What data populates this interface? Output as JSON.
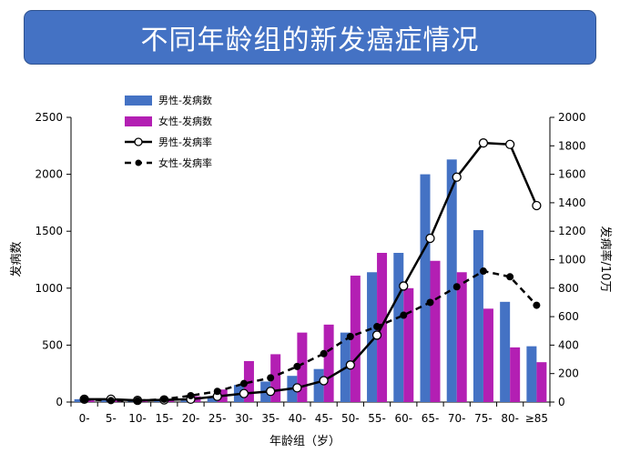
{
  "title": "不同年龄组的新发癌症情况",
  "colors": {
    "banner": "#4472c4",
    "male_bar": "#4472c4",
    "female_bar": "#b31fb3",
    "line": "#000000"
  },
  "chart_data": {
    "type": "bar",
    "title": "不同年龄组的新发癌症情况",
    "categories": [
      "0-",
      "5-",
      "10-",
      "15-",
      "20-",
      "25-",
      "30-",
      "35-",
      "40-",
      "45-",
      "50-",
      "55-",
      "60-",
      "65-",
      "70-",
      "75-",
      "80-",
      "≥85"
    ],
    "xlabel": "年龄组（岁）",
    "ylabel": "发病数",
    "y2label": "发病率/10万",
    "ylim": [
      0,
      2500
    ],
    "y2lim": [
      0,
      2000
    ],
    "yticks": [
      0,
      500,
      1000,
      1500,
      2000,
      2500
    ],
    "y2ticks": [
      0,
      200,
      400,
      600,
      800,
      1000,
      1200,
      1400,
      1600,
      1800,
      2000
    ],
    "legend_position": "top-left",
    "series": [
      {
        "name": "男性-发病数",
        "type": "bar",
        "axis": "left",
        "values": [
          25,
          20,
          15,
          10,
          15,
          35,
          150,
          180,
          230,
          290,
          610,
          1140,
          1310,
          2000,
          2130,
          1510,
          880,
          490
        ]
      },
      {
        "name": "女性-发病数",
        "type": "bar",
        "axis": "left",
        "values": [
          20,
          15,
          10,
          20,
          50,
          110,
          360,
          420,
          610,
          680,
          1110,
          1310,
          1000,
          1240,
          1140,
          820,
          480,
          350
        ]
      },
      {
        "name": "男性-发病率",
        "type": "line",
        "axis": "right",
        "style": "solid",
        "values": [
          20,
          20,
          12,
          15,
          20,
          40,
          60,
          75,
          100,
          150,
          260,
          470,
          815,
          1150,
          1580,
          1820,
          1810,
          1380
        ]
      },
      {
        "name": "女性-发病率",
        "type": "line",
        "axis": "right",
        "style": "dashed",
        "values": [
          20,
          10,
          10,
          20,
          45,
          75,
          130,
          170,
          250,
          340,
          460,
          530,
          610,
          700,
          810,
          920,
          880,
          680
        ]
      }
    ]
  }
}
